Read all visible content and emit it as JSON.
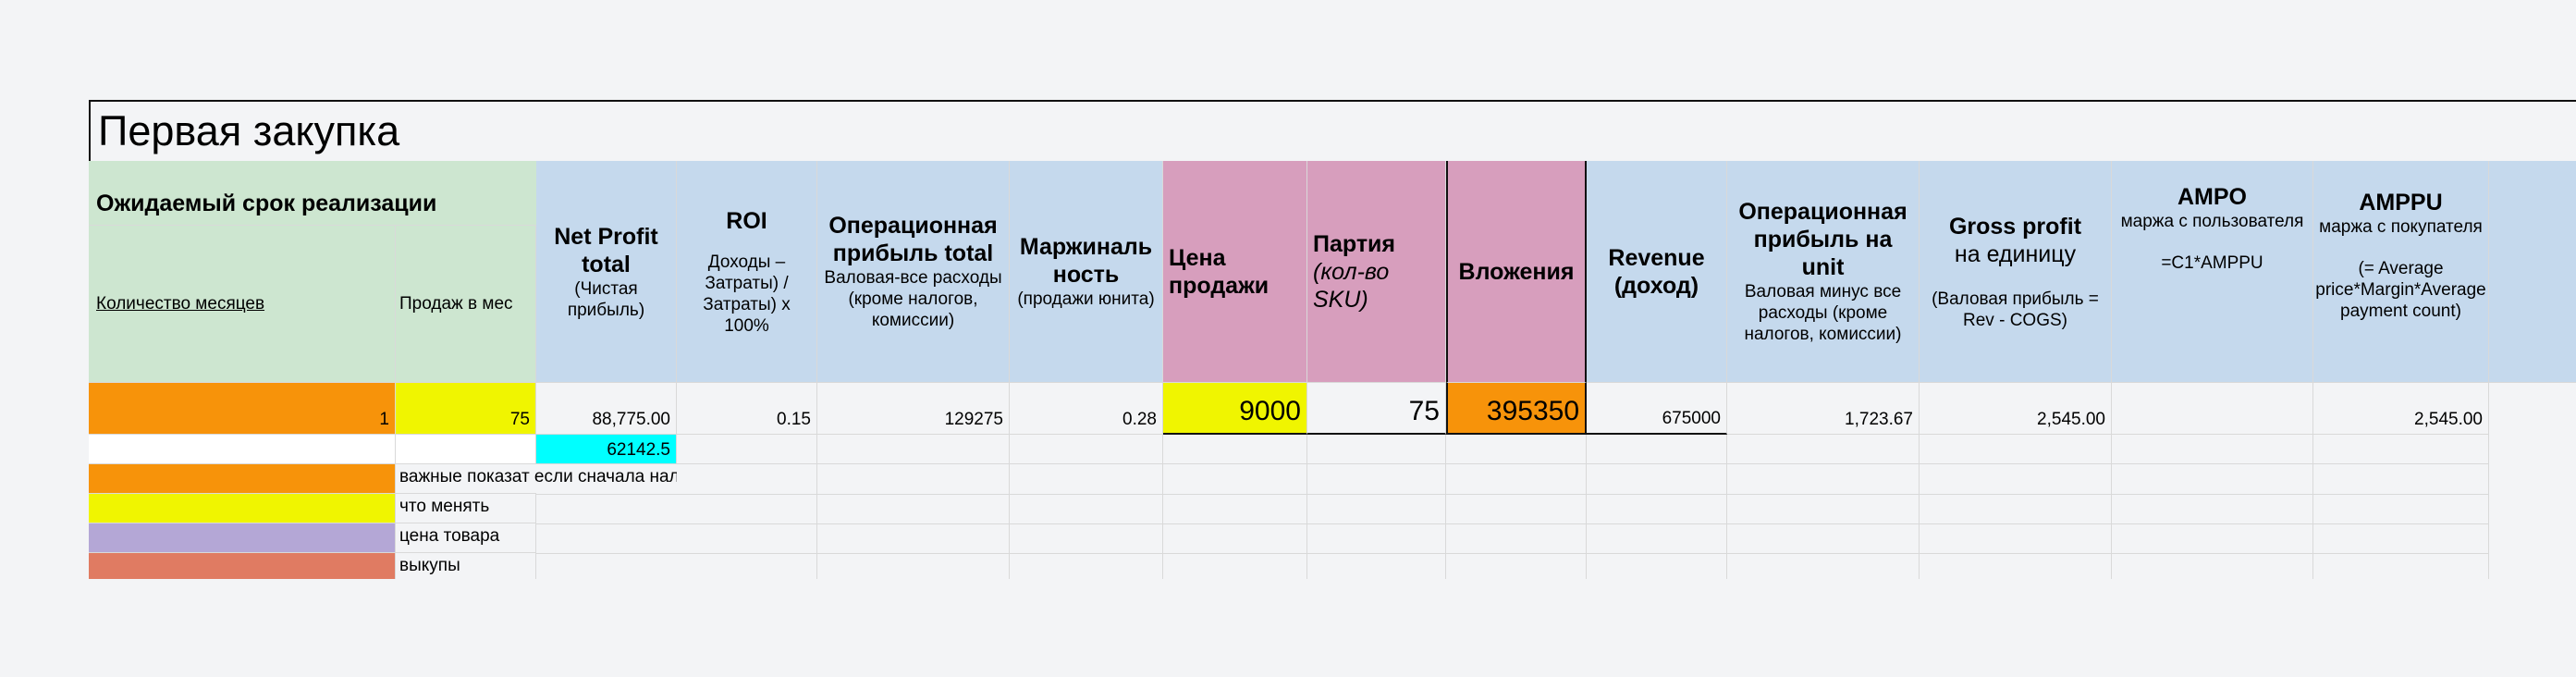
{
  "sheet_title": "Первая закупка",
  "headers": {
    "realization_group": "Ожидаемый срок реализации",
    "months": "Количество месяцев",
    "sales_per_month": "Продаж в мес",
    "net_profit_title": "Net Profit total",
    "net_profit_sub": "(Чистая прибыль)",
    "roi_title": "ROI",
    "roi_sub": "Доходы – Затраты) / Затраты) х 100%",
    "op_profit_title": "Операционная прибыль total",
    "op_profit_sub": "Валовая-все расходы (кроме налогов, комиссии)",
    "marginality_title": "Маржиналь ность",
    "marginality_sub": "(продажи юнита)",
    "price_title": "Цена продажи",
    "batch_title": "Партия",
    "batch_sub": "(кол-во SKU)",
    "investment_title": "Вложения",
    "revenue_title": "Revenue (доход)",
    "op_unit_title": "Операционная прибыль на unit",
    "op_unit_sub": "Валовая минус все расходы (кроме налогов, комиссии)",
    "gross_title": "Gross profit",
    "gross_sub1": "на единицу",
    "gross_sub2": "(Валовая прибыль = Rev - COGS)",
    "ampo_title": "AMPO",
    "ampo_sub1": "маржа с пользователя",
    "ampo_sub2": "=C1*AMPPU",
    "amppu_title": "AMPPU",
    "amppu_sub1": "маржа с покупателя",
    "amppu_sub2": "(= Average price*Margin*Average payment count)"
  },
  "values": {
    "months": "1",
    "sales_per_month": "75",
    "net_profit": "88,775.00",
    "roi": "0.15",
    "op_profit": "129275",
    "marginality": "0.28",
    "price": "9000",
    "batch": "75",
    "investment": "395350",
    "revenue": "675000",
    "op_unit": "1,723.67",
    "gross": "2,545.00",
    "ampo": "",
    "amppu": "2,545.00",
    "net_profit_after_commission": "62142.5"
  },
  "legend": [
    {
      "color": "#f7930a",
      "text": "важные показат если сначала налог, а потом из \"супер чистой прибыли\" посчитать комиссию"
    },
    {
      "color": "#f0f500",
      "text": "что менять"
    },
    {
      "color": "#b4a7d6",
      "text": "цена товара"
    },
    {
      "color": "#e07b62",
      "text": "выкупы"
    }
  ],
  "colors": {
    "header_blue": "#c5d9ed",
    "header_green": "#cde6d0",
    "header_pink": "#d79ebd",
    "orange": "#f7930a",
    "yellow": "#f0f500",
    "cyan": "#00ffff"
  }
}
